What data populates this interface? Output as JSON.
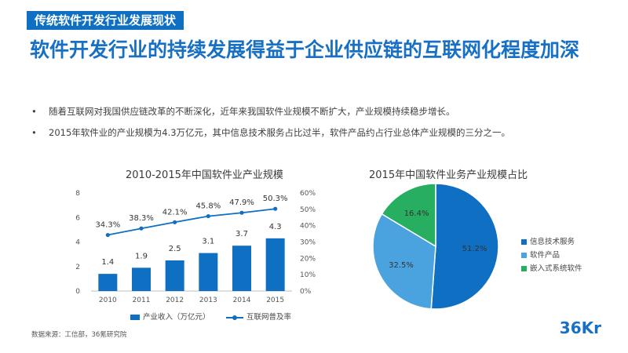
{
  "header": {
    "section_tag": "传统软件开发行业发展现状",
    "headline": "软件开发行业的持续发展得益于企业供应链的互联网化程度加深"
  },
  "bullets": [
    "随着互联网对我国供应链改革的不断深化，近年来我国软件业规模不断扩大，产业规模持续稳步增长。",
    "2015年软件业的产业规模为4.3万亿元，其中信息技术服务占比过半，软件产品约占行业总体产业规模的三分之一。"
  ],
  "bullet_marker": "•",
  "chart_data": [
    {
      "type": "bar+line",
      "title": "2010-2015年中国软件业产业规模",
      "categories": [
        "2010",
        "2011",
        "2012",
        "2013",
        "2014",
        "2015"
      ],
      "series": [
        {
          "name": "产业收入（万亿元）",
          "type": "bar",
          "axis": "left",
          "values": [
            1.4,
            1.9,
            2.5,
            3.1,
            3.7,
            4.3
          ],
          "labels": [
            "1.4",
            "1.9",
            "2.5",
            "3.1",
            "3.7",
            "4.3"
          ],
          "color": "#0e6fc3"
        },
        {
          "name": "互联网普及率",
          "type": "line",
          "axis": "right",
          "values": [
            34.3,
            38.3,
            42.1,
            45.8,
            47.9,
            50.3
          ],
          "labels": [
            "34.3%",
            "38.3%",
            "42.1%",
            "45.8%",
            "47.9%",
            "50.3%"
          ],
          "color": "#0e6fc3"
        }
      ],
      "y_left": {
        "min": 0,
        "max": 8,
        "ticks": [
          "0",
          "2",
          "4",
          "6",
          "8"
        ]
      },
      "y_right": {
        "min": 0,
        "max": 60,
        "ticks": [
          "0%",
          "10%",
          "20%",
          "30%",
          "40%",
          "50%",
          "60%"
        ]
      },
      "legend": [
        "产业收入（万亿元）",
        "互联网普及率"
      ]
    },
    {
      "type": "pie",
      "title": "2015年中国软件业务产业规模占比",
      "slices": [
        {
          "name": "信息技术服务",
          "value": 51.2,
          "label": "51.2%",
          "color": "#0e6fc3"
        },
        {
          "name": "软件产品",
          "value": 32.5,
          "label": "32.5%",
          "color": "#4aa3df"
        },
        {
          "name": "嵌入式系统软件",
          "value": 16.4,
          "label": "16.4%",
          "color": "#27ae60"
        }
      ]
    }
  ],
  "footer": {
    "source": "数据来源：工信部，36氪研究院",
    "logo_num": "36",
    "logo_kr": "Kr"
  }
}
